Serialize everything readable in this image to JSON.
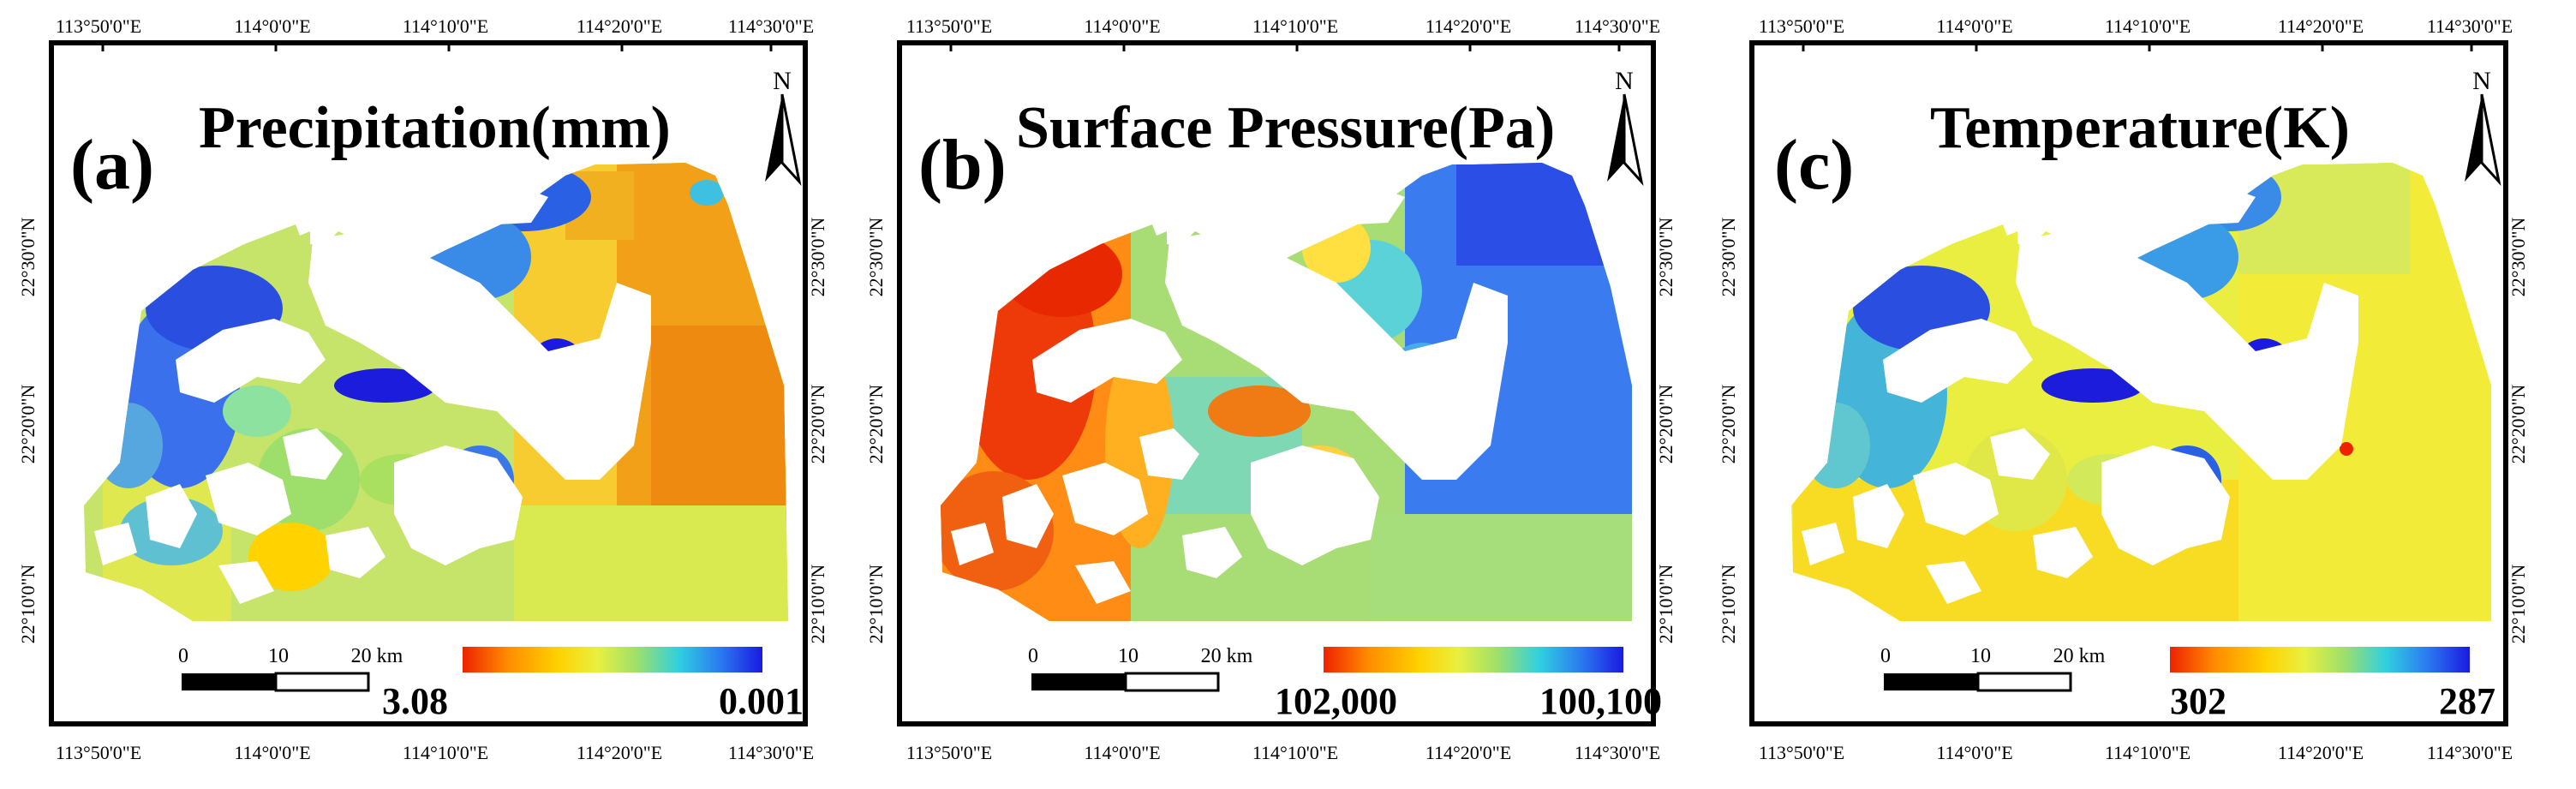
{
  "top_axis_labels": [
    "113°50'0\"E",
    "114°0'0\"E",
    "114°10'0\"E",
    "114°20'0\"E",
    "114°30'0\"E"
  ],
  "bottom_axis_labels": [
    "113°50'0\"E",
    "114°0'0\"E",
    "114°10'0\"E",
    "114°20'0\"E",
    "114°30'0\"E"
  ],
  "left_axis_labels": [
    "22°30'0\"N",
    "22°20'0\"N",
    "22°10'0\"N"
  ],
  "right_axis_labels": [
    "22°30'0\"N",
    "22°20'0\"N",
    "22°10'0\"N"
  ],
  "north_label": "N",
  "scale_bar": {
    "labels": [
      "0",
      "10",
      "20 km"
    ]
  },
  "panels": [
    {
      "id": "a",
      "tag": "(a)",
      "title": "Precipitation(mm)",
      "colorbar": {
        "left_value": "3.08",
        "right_value": "0.001",
        "colors": [
          "#ee2200",
          "#ff8c00",
          "#ffd200",
          "#e8f040",
          "#9ee06a",
          "#30d0e0",
          "#2a7af0",
          "#1a1ae0"
        ]
      }
    },
    {
      "id": "b",
      "tag": "(b)",
      "title": "Surface Pressure(Pa)",
      "colorbar": {
        "left_value": "102,000",
        "right_value": "100,100",
        "colors": [
          "#ee2200",
          "#ff8c00",
          "#ffd200",
          "#e8f040",
          "#9ee06a",
          "#30d0e0",
          "#2a7af0",
          "#1a1ae0"
        ]
      }
    },
    {
      "id": "c",
      "tag": "(c)",
      "title": "Temperature(K)",
      "colorbar": {
        "left_value": "302",
        "right_value": "287",
        "colors": [
          "#ee2200",
          "#ff8c00",
          "#ffd200",
          "#e8f040",
          "#9ee06a",
          "#30d0e0",
          "#2a7af0",
          "#1a1ae0"
        ]
      }
    }
  ]
}
